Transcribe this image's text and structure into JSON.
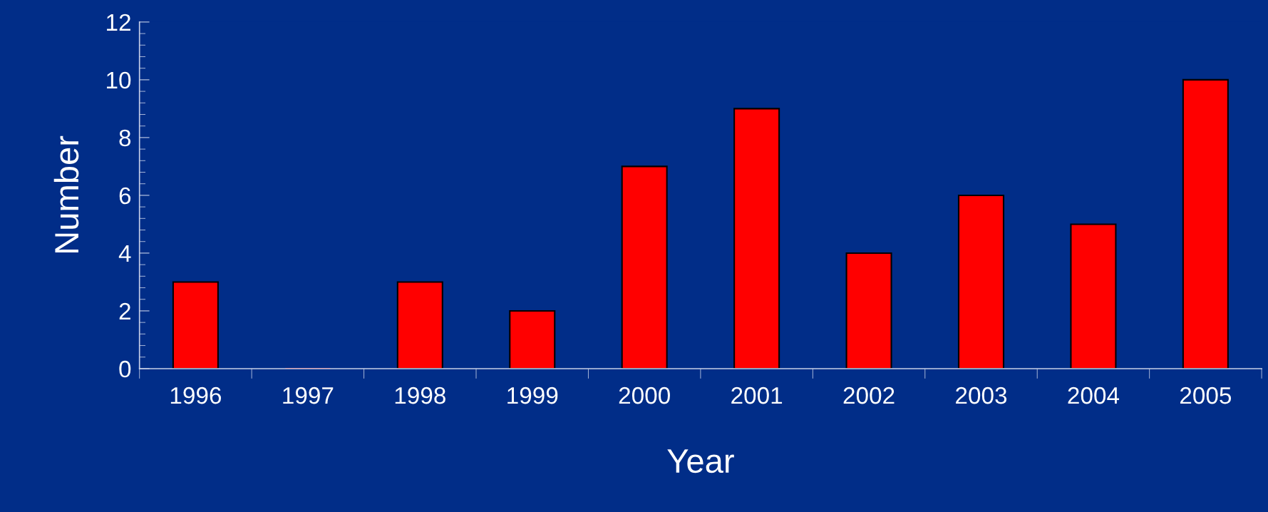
{
  "chart_data": {
    "type": "bar",
    "xlabel": "Year",
    "ylabel": "Number",
    "categories": [
      "1996",
      "1997",
      "1998",
      "1999",
      "2000",
      "2001",
      "2002",
      "2003",
      "2004",
      "2005"
    ],
    "values": [
      3,
      0,
      3,
      2,
      7,
      9,
      4,
      6,
      5,
      10
    ],
    "color": "#ff0000",
    "ylim": [
      0,
      12
    ],
    "yticks": [
      0,
      {
        "value": 0.4,
        "label": null
      },
      {
        "value": 0.8,
        "label": null
      },
      {
        "value": 1.2,
        "label": null
      },
      {
        "value": 1.6,
        "label": null
      },
      2,
      {
        "value": 2.4,
        "label": null
      },
      {
        "value": 2.8,
        "label": null
      },
      {
        "value": 3.2,
        "label": null
      },
      {
        "value": 3.6,
        "label": null
      },
      4,
      {
        "value": 4.4,
        "label": null
      },
      {
        "value": 4.8,
        "label": null
      },
      {
        "value": 5.2,
        "label": null
      },
      {
        "value": 5.6,
        "label": null
      },
      6,
      {
        "value": 6.4,
        "label": null
      },
      {
        "value": 6.8,
        "label": null
      },
      {
        "value": 7.2,
        "label": null
      },
      {
        "value": 7.6,
        "label": null
      },
      8,
      {
        "value": 8.4,
        "label": null
      },
      {
        "value": 8.8,
        "label": null
      },
      {
        "value": 9.2,
        "label": null
      },
      {
        "value": 9.6,
        "label": null
      },
      10,
      {
        "value": 10.4,
        "label": null
      },
      {
        "value": 10.8,
        "label": null
      },
      {
        "value": 11.2,
        "label": null
      },
      {
        "value": 11.6,
        "label": null
      },
      12
    ],
    "grid": false,
    "legend": false
  }
}
